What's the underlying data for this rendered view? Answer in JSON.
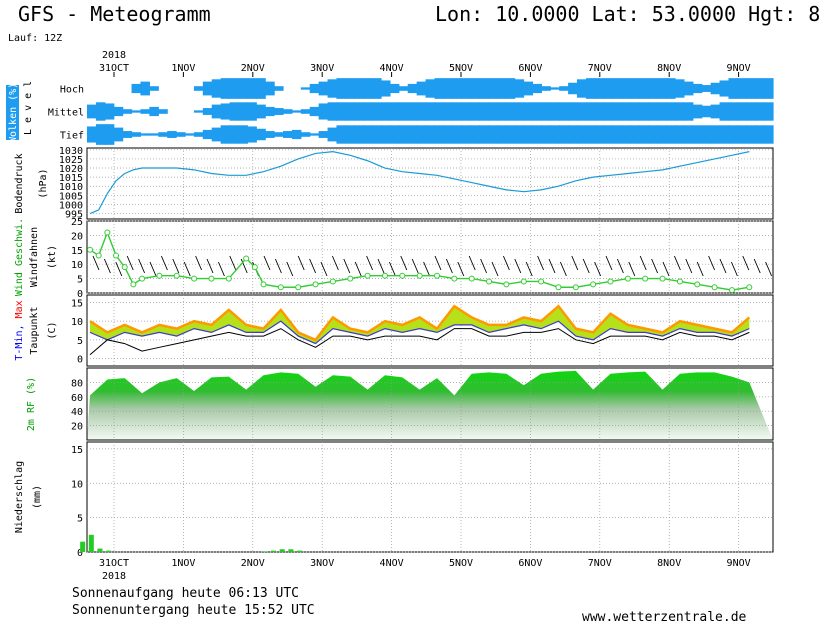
{
  "header": {
    "title": "GFS - Meteogramm",
    "location": "Lon: 10.0000 Lat: 53.0000 Hgt: 8",
    "run": "Lauf: 12Z"
  },
  "dates": {
    "year": "2018",
    "labels": [
      "31OCT",
      "1NOV",
      "2NOV",
      "3NOV",
      "4NOV",
      "5NOV",
      "6NOV",
      "7NOV",
      "8NOV",
      "9NOV"
    ]
  },
  "panels": {
    "clouds": {
      "label1": "Wolken (%)",
      "label2": "L e v e l",
      "levels": [
        "Hoch",
        "Mittel",
        "Tief"
      ]
    },
    "pressure": {
      "label1": "Bodendruck",
      "label2": "(hPa)"
    },
    "wind": {
      "label1a": "Wind",
      "label1b": "Geschwi.",
      "label2": "Windfahnen",
      "label3": "(kt)"
    },
    "temp": {
      "label1a": "T-Min,",
      "label1b": "Max",
      "label2": "Taupunkt",
      "label3": "(C)"
    },
    "rh": {
      "label1": "2m RF (%)"
    },
    "precip": {
      "label1": "Niederschlag",
      "label2": "(mm)"
    }
  },
  "footer": {
    "sunrise": "Sonnenaufgang heute 06:13 UTC",
    "sunset": "Sonnenuntergang heute 15:52 UTC",
    "source": "www.wetterzentrale.de"
  },
  "colors": {
    "cloud": "#1e9cf0",
    "pressure": "#1a9ad6",
    "wind": "#33cc33",
    "tmax_band": "#ff9900",
    "tmax_fill": "#b6e01a",
    "tmin": "#3b3bcc",
    "dew": "#000000",
    "rh": "#11c611",
    "precip": "#22cc22",
    "label_red": "#ff0000",
    "label_blue": "#0000ff",
    "label_green": "#00a000"
  },
  "chart_data": [
    {
      "type": "heatmap",
      "title": "Wolken (%)",
      "levels": [
        "Hoch",
        "Mittel",
        "Tief"
      ],
      "time_steps": 77,
      "cover": {
        "Hoch": [
          0,
          0,
          0,
          0,
          0,
          40,
          60,
          20,
          0,
          0,
          0,
          0,
          20,
          60,
          80,
          90,
          90,
          90,
          90,
          90,
          60,
          20,
          0,
          0,
          10,
          40,
          60,
          80,
          90,
          90,
          90,
          90,
          90,
          70,
          40,
          20,
          40,
          60,
          80,
          90,
          90,
          90,
          90,
          90,
          90,
          90,
          90,
          90,
          80,
          60,
          40,
          20,
          10,
          20,
          50,
          80,
          90,
          90,
          90,
          90,
          90,
          90,
          90,
          90,
          90,
          90,
          80,
          60,
          40,
          30,
          50,
          70,
          90,
          90,
          90,
          90,
          90
        ],
        "Mittel": [
          60,
          80,
          70,
          40,
          20,
          10,
          20,
          40,
          20,
          0,
          0,
          0,
          10,
          30,
          60,
          70,
          80,
          80,
          80,
          60,
          40,
          30,
          20,
          10,
          20,
          40,
          70,
          80,
          80,
          80,
          80,
          80,
          80,
          80,
          80,
          80,
          80,
          80,
          80,
          80,
          80,
          80,
          80,
          80,
          80,
          80,
          80,
          80,
          80,
          80,
          80,
          80,
          80,
          80,
          80,
          80,
          80,
          80,
          80,
          80,
          80,
          80,
          80,
          80,
          80,
          80,
          80,
          80,
          60,
          50,
          60,
          80,
          80,
          80,
          80,
          80,
          80
        ],
        "Tief": [
          70,
          90,
          90,
          60,
          30,
          20,
          10,
          10,
          20,
          30,
          20,
          10,
          20,
          40,
          60,
          80,
          80,
          80,
          70,
          50,
          30,
          20,
          30,
          40,
          20,
          10,
          30,
          60,
          80,
          80,
          80,
          80,
          80,
          80,
          80,
          80,
          80,
          80,
          80,
          80,
          80,
          80,
          80,
          80,
          80,
          80,
          80,
          80,
          80,
          80,
          80,
          80,
          80,
          80,
          80,
          80,
          80,
          80,
          80,
          80,
          80,
          80,
          80,
          80,
          80,
          80,
          80,
          80,
          80,
          80,
          80,
          80,
          80,
          80,
          80,
          80,
          80
        ]
      }
    },
    {
      "type": "line",
      "title": "Bodendruck",
      "ylabel": "(hPa)",
      "ylim": [
        992,
        1031
      ],
      "yticks": [
        995,
        1000,
        1005,
        1010,
        1015,
        1020,
        1025,
        1030
      ],
      "x_day_offset": [
        0,
        0.125,
        0.25,
        0.375,
        0.5,
        0.625,
        0.75,
        0.875,
        1,
        1.25,
        1.5,
        1.75,
        2,
        2.25,
        2.5,
        2.75,
        3,
        3.25,
        3.5,
        3.75,
        4,
        4.25,
        4.5,
        4.75,
        5,
        5.25,
        5.5,
        5.75,
        6,
        6.25,
        6.5,
        6.75,
        7,
        7.25,
        7.5,
        7.75,
        8,
        8.25,
        8.5,
        8.75,
        9,
        9.25,
        9.5
      ],
      "values": [
        995,
        997,
        1006,
        1013,
        1017,
        1019,
        1020,
        1020,
        1020,
        1020,
        1019,
        1017,
        1016,
        1016,
        1018,
        1021,
        1025,
        1028,
        1029,
        1027,
        1024,
        1020,
        1018,
        1017,
        1016,
        1014,
        1012,
        1010,
        1008,
        1007,
        1008,
        1010,
        1013,
        1015,
        1016,
        1017,
        1018,
        1019,
        1021,
        1023,
        1025,
        1027,
        1029
      ]
    },
    {
      "type": "line",
      "title": "Wind Geschwi.",
      "ylabel": "(kt)",
      "ylim": [
        0,
        25
      ],
      "yticks": [
        0,
        5,
        10,
        15,
        20,
        25
      ],
      "x_day_offset": [
        0,
        0.125,
        0.25,
        0.375,
        0.5,
        0.625,
        0.75,
        1,
        1.25,
        1.5,
        1.75,
        2,
        2.25,
        2.375,
        2.5,
        2.75,
        3,
        3.25,
        3.5,
        3.75,
        4,
        4.25,
        4.5,
        4.75,
        5,
        5.25,
        5.5,
        5.75,
        6,
        6.25,
        6.5,
        6.75,
        7,
        7.25,
        7.5,
        7.75,
        8,
        8.25,
        8.5,
        8.75,
        9,
        9.25,
        9.5
      ],
      "values": [
        15,
        13,
        21,
        13,
        9,
        3,
        5,
        6,
        6,
        5,
        5,
        5,
        12,
        9,
        3,
        2,
        2,
        3,
        4,
        5,
        6,
        6,
        6,
        6,
        6,
        5,
        5,
        4,
        3,
        4,
        4,
        2,
        2,
        3,
        4,
        5,
        5,
        5,
        4,
        3,
        2,
        1,
        2
      ]
    },
    {
      "type": "line",
      "title": "T-Min, Max / Taupunkt",
      "ylabel": "(C)",
      "ylim": [
        -2,
        17
      ],
      "yticks": [
        0,
        5,
        10,
        15
      ],
      "x_day_offset": [
        0,
        0.25,
        0.5,
        0.75,
        1,
        1.25,
        1.5,
        1.75,
        2,
        2.25,
        2.5,
        2.75,
        3,
        3.25,
        3.5,
        3.75,
        4,
        4.25,
        4.5,
        4.75,
        5,
        5.25,
        5.5,
        5.75,
        6,
        6.25,
        6.5,
        6.75,
        7,
        7.25,
        7.5,
        7.75,
        8,
        8.25,
        8.5,
        8.75,
        9,
        9.25,
        9.5
      ],
      "series": [
        {
          "name": "T-Max",
          "values": [
            10,
            7,
            9,
            7,
            9,
            8,
            10,
            9,
            13,
            9,
            8,
            13,
            7,
            5,
            11,
            8,
            7,
            10,
            9,
            11,
            8,
            14,
            11,
            9,
            9,
            11,
            10,
            14,
            8,
            7,
            12,
            9,
            8,
            7,
            10,
            9,
            8,
            7,
            11
          ]
        },
        {
          "name": "T-Min",
          "values": [
            7,
            5,
            7,
            6,
            7,
            6,
            8,
            7,
            9,
            7,
            7,
            10,
            6,
            4,
            8,
            7,
            6,
            8,
            7,
            8,
            7,
            9,
            9,
            7,
            8,
            9,
            8,
            10,
            6,
            5,
            8,
            7,
            7,
            6,
            8,
            7,
            7,
            6,
            8
          ]
        },
        {
          "name": "Taupunkt",
          "values": [
            1,
            5,
            4,
            2,
            3,
            4,
            5,
            6,
            7,
            6,
            6,
            8,
            5,
            3,
            6,
            6,
            5,
            6,
            6,
            6,
            5,
            8,
            8,
            6,
            6,
            7,
            7,
            8,
            5,
            4,
            6,
            6,
            6,
            5,
            7,
            6,
            6,
            5,
            7
          ]
        }
      ]
    },
    {
      "type": "area",
      "title": "2m RF (%)",
      "ylim": [
        0,
        100
      ],
      "yticks": [
        20,
        40,
        60,
        80
      ],
      "x_day_offset": [
        0,
        0.25,
        0.5,
        0.75,
        1,
        1.25,
        1.5,
        1.75,
        2,
        2.25,
        2.5,
        2.75,
        3,
        3.25,
        3.5,
        3.75,
        4,
        4.25,
        4.5,
        4.75,
        5,
        5.25,
        5.5,
        5.75,
        6,
        6.25,
        6.5,
        6.75,
        7,
        7.25,
        7.5,
        7.75,
        8,
        8.25,
        8.5,
        8.75,
        9,
        9.25,
        9.5
      ],
      "values": [
        62,
        84,
        86,
        65,
        80,
        86,
        68,
        87,
        88,
        70,
        90,
        94,
        92,
        74,
        90,
        88,
        70,
        90,
        87,
        70,
        86,
        62,
        92,
        94,
        92,
        76,
        92,
        95,
        96,
        70,
        92,
        94,
        95,
        70,
        92,
        94,
        94,
        88,
        80
      ]
    },
    {
      "type": "bar",
      "title": "Niederschlag",
      "ylabel": "(mm)",
      "ylim": [
        0,
        16
      ],
      "yticks": [
        0,
        5,
        10,
        15
      ],
      "x_day_offset": [
        -0.25,
        -0.125,
        0,
        0.125,
        2.375,
        2.5,
        2.625,
        2.75,
        2.875
      ],
      "values": [
        1.5,
        2.5,
        0.5,
        0.2,
        0.1,
        0.2,
        0.4,
        0.4,
        0.2
      ]
    }
  ]
}
